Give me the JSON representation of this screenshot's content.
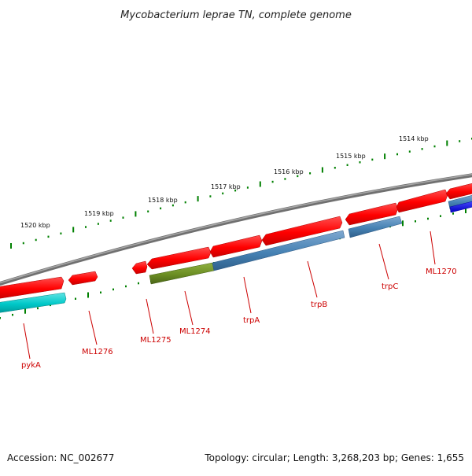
{
  "title": "Mycobacterium leprae TN, complete genome",
  "footer": {
    "accession": "Accession: NC_002677",
    "summary": "Topology: circular; Length: 3,268,203 bp; Genes: 1,655"
  },
  "scale": {
    "labels": [
      "1520 kbp",
      "1519 kbp",
      "1518 kbp",
      "1517 kbp",
      "1516 kbp",
      "1515 kbp",
      "1514 kbp"
    ]
  },
  "genes": [
    "pykA",
    "ML1276",
    "ML1275",
    "ML1274",
    "trpA",
    "trpB",
    "trpC",
    "ML1270"
  ],
  "colors": {
    "gene": "#ff0000",
    "cds_forward": "#4682b4",
    "cds_olive": "#6b8e23",
    "cds_cyan": "#00c8c8",
    "cds_blue": "#0000ee",
    "backbone": "#808080",
    "ticks": "#008000",
    "label": "#cc0000"
  }
}
